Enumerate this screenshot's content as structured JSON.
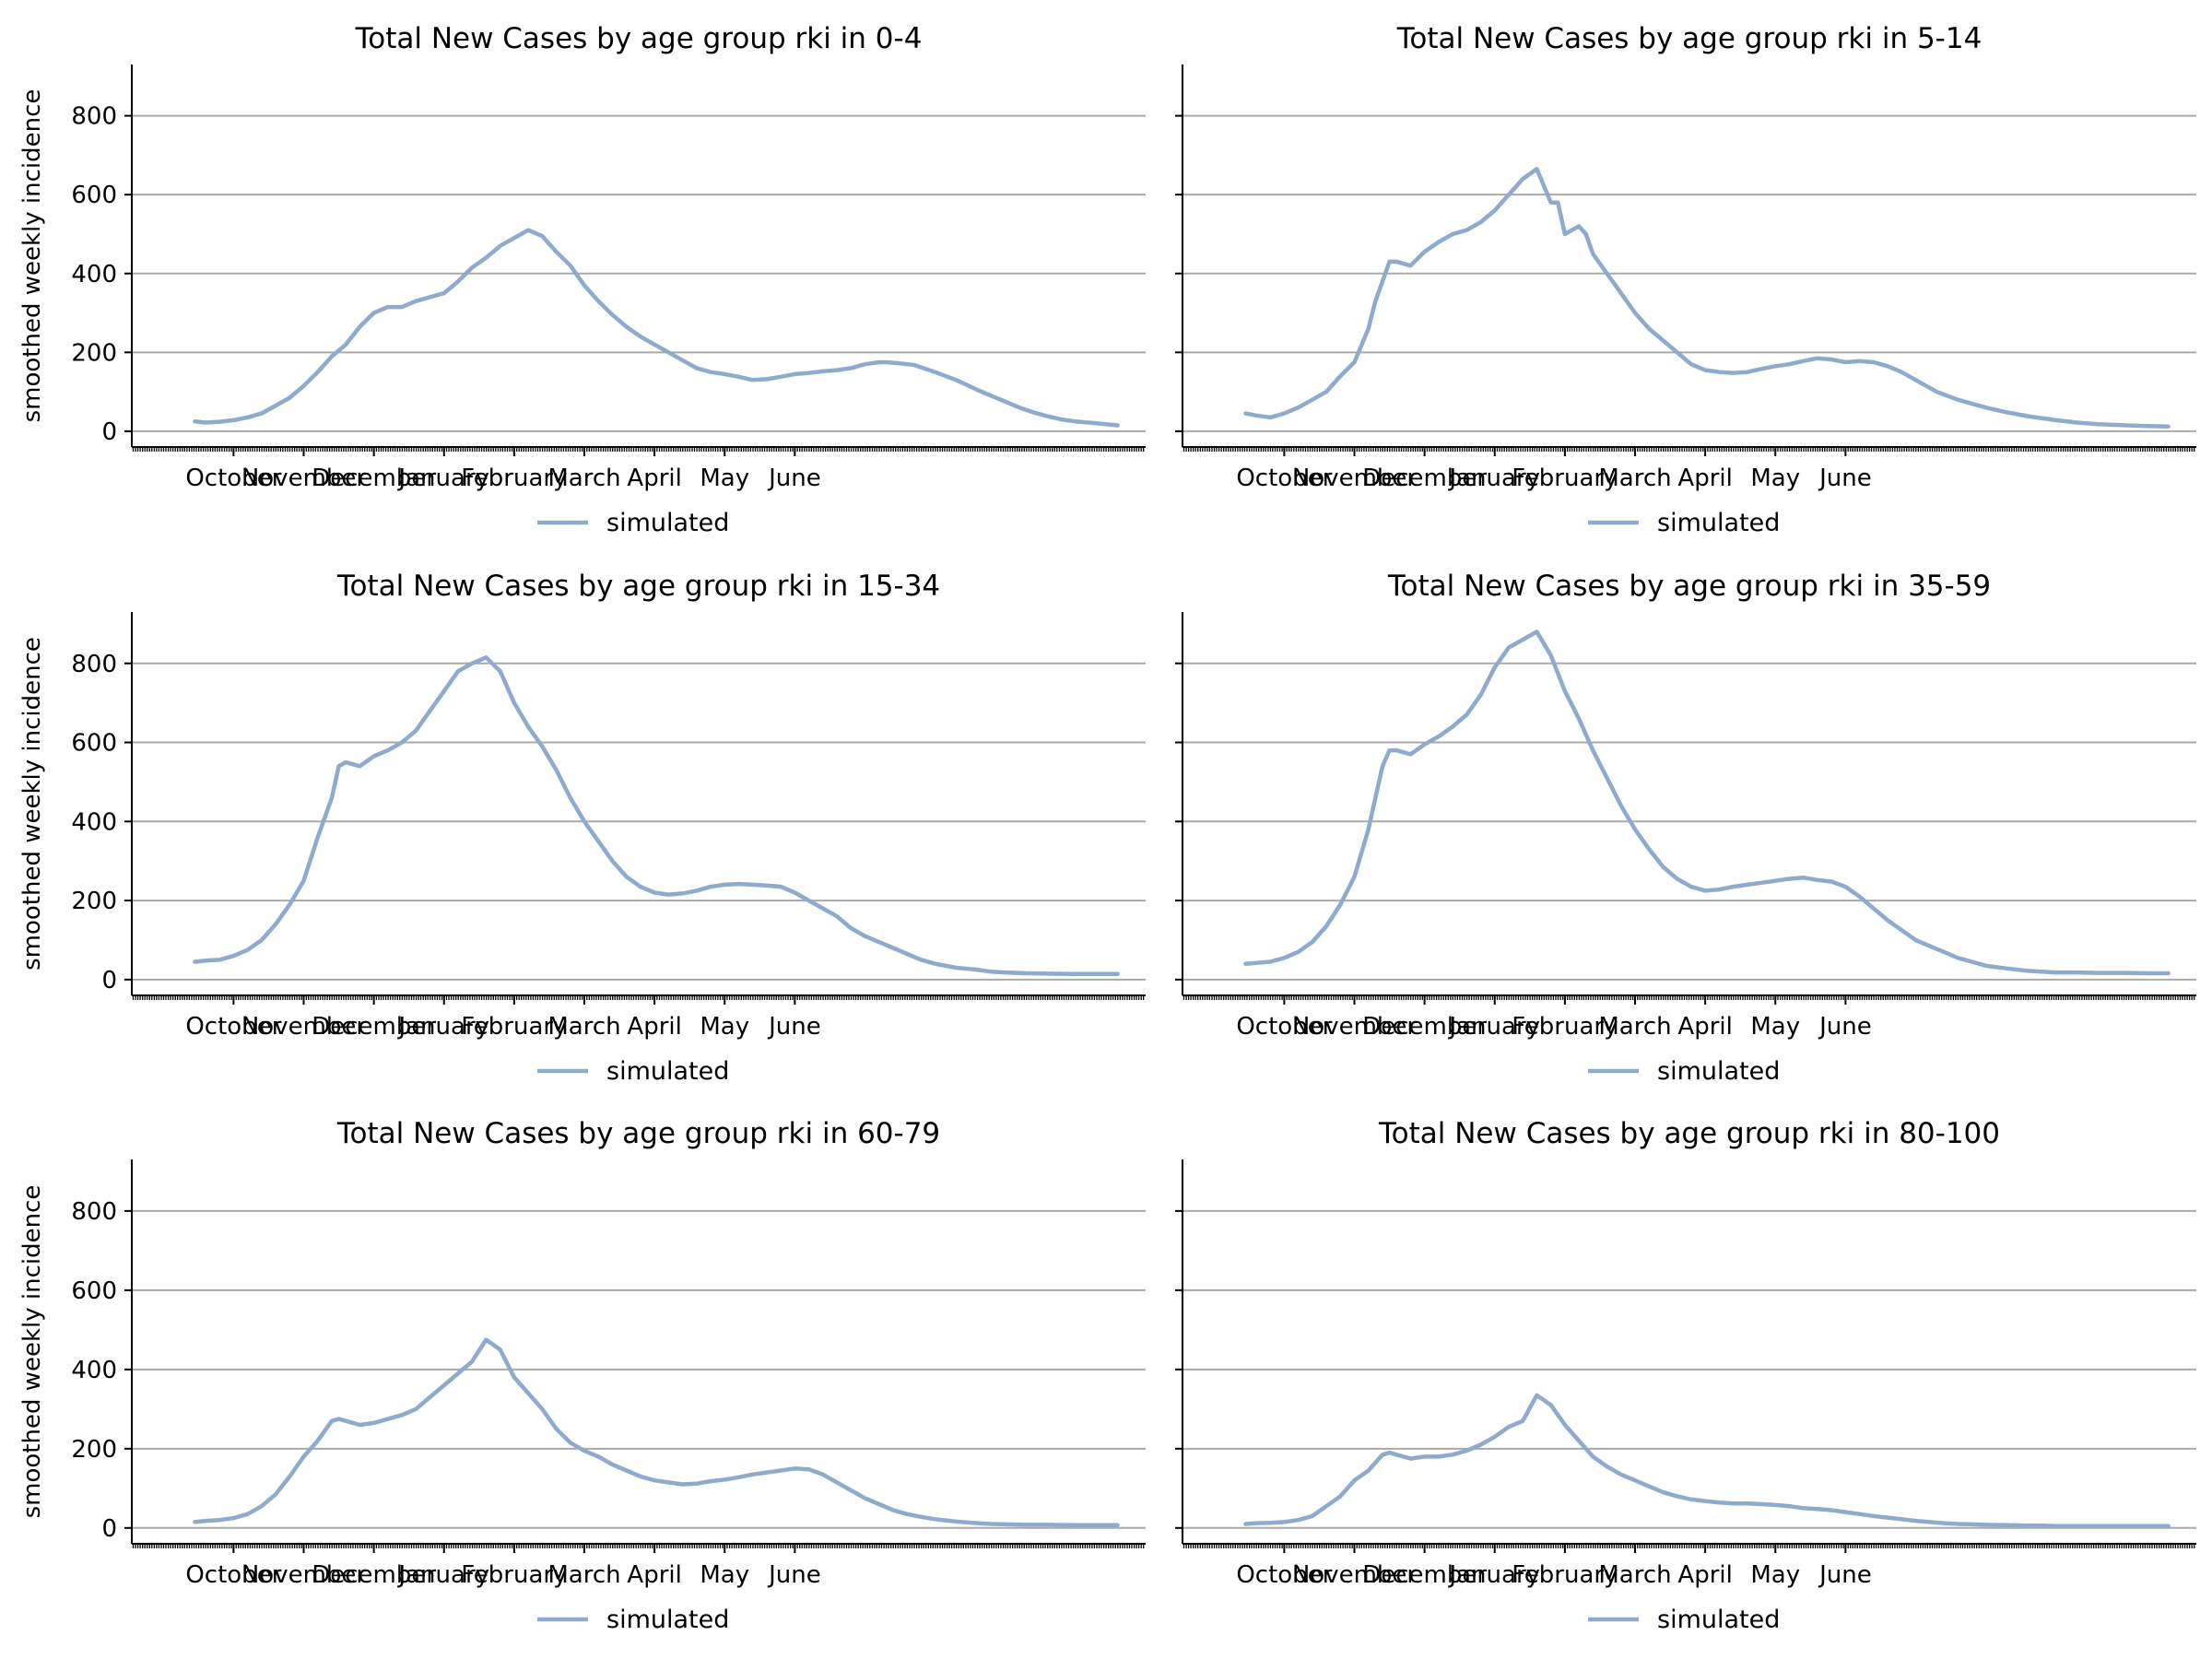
{
  "style": {
    "line_color": "#8eaacc",
    "grid_color": "#aaaaaa",
    "axis_color": "#000000"
  },
  "chart_data": [
    {
      "type": "line",
      "title": "Total New Cases by age group rki in 0-4",
      "ylabel": "smoothed weekly incidence",
      "xlabel": "",
      "ylim": [
        -40,
        930
      ],
      "yticks": [
        0,
        200,
        400,
        600,
        800
      ],
      "xticks": [
        "October",
        "November",
        "December",
        "January",
        "February",
        "March",
        "April",
        "May",
        "June"
      ],
      "grid": "horizontal",
      "legend": "bottom-center",
      "series": [
        {
          "name": "simulated",
          "x": [
            -0.55,
            -0.4,
            -0.2,
            0.0,
            0.2,
            0.4,
            0.6,
            0.8,
            1.0,
            1.2,
            1.4,
            1.6,
            1.8,
            2.0,
            2.2,
            2.4,
            2.6,
            2.8,
            3.0,
            3.2,
            3.4,
            3.6,
            3.8,
            4.0,
            4.2,
            4.4,
            4.6,
            4.8,
            5.0,
            5.2,
            5.4,
            5.6,
            5.8,
            6.0,
            6.2,
            6.4,
            6.6,
            6.8,
            7.0,
            7.2,
            7.4,
            7.6,
            7.8,
            8.0,
            8.2,
            8.4,
            8.6,
            8.8,
            9.0,
            9.2,
            9.3,
            9.5,
            9.7,
            10.0,
            10.3,
            10.6,
            10.8,
            11.0,
            11.2,
            11.4,
            11.6,
            11.8,
            12.0,
            12.3,
            12.6
          ],
          "y": [
            25,
            22,
            24,
            28,
            35,
            45,
            65,
            85,
            115,
            150,
            190,
            220,
            265,
            300,
            315,
            315,
            330,
            340,
            350,
            380,
            415,
            440,
            470,
            490,
            510,
            495,
            455,
            420,
            370,
            330,
            295,
            265,
            240,
            220,
            200,
            180,
            160,
            150,
            145,
            138,
            130,
            132,
            138,
            145,
            148,
            152,
            155,
            160,
            170,
            175,
            175,
            172,
            168,
            150,
            130,
            105,
            90,
            75,
            60,
            48,
            38,
            30,
            25,
            20,
            15
          ]
        }
      ]
    },
    {
      "type": "line",
      "title": "Total New Cases by age group rki in 5-14",
      "ylabel": "",
      "xlabel": "",
      "ylim": [
        -40,
        930
      ],
      "yticks": [
        0,
        200,
        400,
        600,
        800
      ],
      "xticks": [
        "October",
        "November",
        "December",
        "January",
        "February",
        "March",
        "April",
        "May",
        "June"
      ],
      "grid": "horizontal",
      "legend": "bottom-center",
      "series": [
        {
          "name": "simulated",
          "x": [
            -0.55,
            -0.4,
            -0.2,
            0.0,
            0.2,
            0.4,
            0.6,
            0.8,
            1.0,
            1.2,
            1.3,
            1.5,
            1.6,
            1.8,
            2.0,
            2.2,
            2.4,
            2.6,
            2.8,
            3.0,
            3.2,
            3.4,
            3.6,
            3.8,
            3.9,
            4.0,
            4.1,
            4.2,
            4.3,
            4.4,
            4.6,
            4.8,
            5.0,
            5.2,
            5.4,
            5.6,
            5.8,
            6.0,
            6.2,
            6.4,
            6.6,
            6.8,
            7.0,
            7.2,
            7.4,
            7.6,
            7.8,
            8.0,
            8.2,
            8.4,
            8.6,
            8.8,
            9.0,
            9.3,
            9.6,
            10.0,
            10.3,
            10.6,
            11.0,
            11.3,
            11.6,
            12.0,
            12.3,
            12.6
          ],
          "y": [
            45,
            40,
            35,
            45,
            60,
            80,
            100,
            140,
            175,
            260,
            330,
            430,
            430,
            420,
            455,
            480,
            500,
            510,
            530,
            560,
            600,
            640,
            665,
            580,
            580,
            500,
            510,
            520,
            500,
            450,
            400,
            350,
            300,
            260,
            230,
            200,
            170,
            155,
            150,
            148,
            150,
            158,
            165,
            170,
            178,
            185,
            182,
            175,
            178,
            175,
            165,
            150,
            130,
            100,
            80,
            60,
            48,
            38,
            28,
            22,
            18,
            15,
            13,
            12
          ]
        }
      ]
    },
    {
      "type": "line",
      "title": "Total New Cases by age group rki in 15-34",
      "ylabel": "smoothed weekly incidence",
      "xlabel": "",
      "ylim": [
        -40,
        930
      ],
      "yticks": [
        0,
        200,
        400,
        600,
        800
      ],
      "xticks": [
        "October",
        "November",
        "December",
        "January",
        "February",
        "March",
        "April",
        "May",
        "June"
      ],
      "grid": "horizontal",
      "legend": "bottom-center",
      "series": [
        {
          "name": "simulated",
          "x": [
            -0.55,
            -0.4,
            -0.2,
            0.0,
            0.2,
            0.4,
            0.6,
            0.8,
            1.0,
            1.2,
            1.4,
            1.5,
            1.6,
            1.8,
            2.0,
            2.2,
            2.4,
            2.6,
            2.8,
            3.0,
            3.2,
            3.4,
            3.6,
            3.8,
            4.0,
            4.2,
            4.4,
            4.6,
            4.8,
            5.0,
            5.2,
            5.4,
            5.6,
            5.8,
            6.0,
            6.2,
            6.4,
            6.6,
            6.8,
            7.0,
            7.2,
            7.4,
            7.6,
            7.8,
            8.0,
            8.2,
            8.4,
            8.6,
            8.8,
            9.0,
            9.2,
            9.4,
            9.6,
            9.8,
            10.0,
            10.3,
            10.6,
            10.8,
            11.0,
            11.3,
            11.6,
            12.0,
            12.3,
            12.6
          ],
          "y": [
            45,
            48,
            50,
            60,
            75,
            100,
            140,
            190,
            250,
            360,
            460,
            540,
            550,
            540,
            565,
            580,
            600,
            630,
            680,
            730,
            780,
            800,
            815,
            780,
            700,
            640,
            590,
            530,
            460,
            400,
            350,
            300,
            260,
            235,
            220,
            215,
            218,
            225,
            235,
            240,
            242,
            240,
            238,
            235,
            220,
            200,
            180,
            160,
            130,
            110,
            95,
            80,
            65,
            50,
            40,
            30,
            25,
            20,
            18,
            16,
            15,
            14,
            14,
            14
          ]
        }
      ]
    },
    {
      "type": "line",
      "title": "Total New Cases by age group rki in 35-59",
      "ylabel": "",
      "xlabel": "",
      "ylim": [
        -40,
        930
      ],
      "yticks": [
        0,
        200,
        400,
        600,
        800
      ],
      "xticks": [
        "October",
        "November",
        "December",
        "January",
        "February",
        "March",
        "April",
        "May",
        "June"
      ],
      "grid": "horizontal",
      "legend": "bottom-center",
      "series": [
        {
          "name": "simulated",
          "x": [
            -0.55,
            -0.4,
            -0.2,
            0.0,
            0.2,
            0.4,
            0.6,
            0.8,
            1.0,
            1.2,
            1.4,
            1.5,
            1.6,
            1.8,
            2.0,
            2.2,
            2.4,
            2.6,
            2.8,
            3.0,
            3.2,
            3.4,
            3.6,
            3.8,
            4.0,
            4.2,
            4.4,
            4.6,
            4.8,
            5.0,
            5.2,
            5.4,
            5.6,
            5.8,
            6.0,
            6.2,
            6.4,
            6.6,
            6.8,
            7.0,
            7.2,
            7.4,
            7.6,
            7.8,
            8.0,
            8.2,
            8.4,
            8.6,
            8.8,
            9.0,
            9.2,
            9.4,
            9.6,
            9.8,
            10.0,
            10.3,
            10.6,
            10.8,
            11.0,
            11.3,
            11.6,
            12.0,
            12.3,
            12.6
          ],
          "y": [
            40,
            42,
            45,
            55,
            70,
            95,
            135,
            190,
            260,
            380,
            540,
            580,
            580,
            570,
            595,
            615,
            640,
            670,
            720,
            790,
            840,
            860,
            880,
            820,
            730,
            660,
            580,
            510,
            440,
            380,
            330,
            285,
            255,
            235,
            225,
            228,
            235,
            240,
            245,
            250,
            255,
            258,
            252,
            248,
            235,
            210,
            180,
            150,
            125,
            100,
            85,
            70,
            55,
            45,
            35,
            28,
            22,
            20,
            18,
            18,
            17,
            17,
            16,
            16
          ]
        }
      ]
    },
    {
      "type": "line",
      "title": "Total New Cases by age group rki in 60-79",
      "ylabel": "smoothed weekly incidence",
      "xlabel": "",
      "ylim": [
        -40,
        930
      ],
      "yticks": [
        0,
        200,
        400,
        600,
        800
      ],
      "xticks": [
        "October",
        "November",
        "December",
        "January",
        "February",
        "March",
        "April",
        "May",
        "June"
      ],
      "grid": "horizontal",
      "legend": "bottom-center",
      "series": [
        {
          "name": "simulated",
          "x": [
            -0.55,
            -0.4,
            -0.2,
            0.0,
            0.2,
            0.4,
            0.6,
            0.8,
            1.0,
            1.2,
            1.4,
            1.5,
            1.6,
            1.8,
            2.0,
            2.2,
            2.4,
            2.6,
            2.8,
            3.0,
            3.2,
            3.4,
            3.6,
            3.8,
            4.0,
            4.2,
            4.4,
            4.6,
            4.8,
            5.0,
            5.2,
            5.4,
            5.6,
            5.8,
            6.0,
            6.2,
            6.4,
            6.6,
            6.8,
            7.0,
            7.2,
            7.4,
            7.6,
            7.8,
            8.0,
            8.2,
            8.4,
            8.6,
            8.8,
            9.0,
            9.2,
            9.4,
            9.6,
            9.8,
            10.0,
            10.3,
            10.6,
            10.8,
            11.0,
            11.3,
            11.6,
            12.0,
            12.3,
            12.6
          ],
          "y": [
            15,
            18,
            20,
            25,
            35,
            55,
            85,
            130,
            180,
            220,
            270,
            275,
            270,
            260,
            265,
            275,
            285,
            300,
            330,
            360,
            390,
            420,
            475,
            450,
            380,
            340,
            300,
            250,
            215,
            195,
            180,
            160,
            145,
            130,
            120,
            115,
            110,
            112,
            118,
            122,
            128,
            135,
            140,
            145,
            150,
            148,
            135,
            115,
            95,
            75,
            60,
            45,
            35,
            28,
            22,
            16,
            12,
            10,
            9,
            8,
            8,
            7,
            7,
            7
          ]
        }
      ]
    },
    {
      "type": "line",
      "title": "Total New Cases by age group rki in 80-100",
      "ylabel": "",
      "xlabel": "",
      "ylim": [
        -40,
        930
      ],
      "yticks": [
        0,
        200,
        400,
        600,
        800
      ],
      "xticks": [
        "October",
        "November",
        "December",
        "January",
        "February",
        "March",
        "April",
        "May",
        "June"
      ],
      "grid": "horizontal",
      "legend": "bottom-center",
      "series": [
        {
          "name": "simulated",
          "x": [
            -0.55,
            -0.4,
            -0.2,
            0.0,
            0.2,
            0.4,
            0.6,
            0.8,
            1.0,
            1.2,
            1.4,
            1.5,
            1.6,
            1.8,
            2.0,
            2.2,
            2.4,
            2.6,
            2.8,
            3.0,
            3.2,
            3.4,
            3.6,
            3.8,
            4.0,
            4.2,
            4.4,
            4.6,
            4.8,
            5.0,
            5.2,
            5.4,
            5.6,
            5.8,
            6.0,
            6.2,
            6.4,
            6.6,
            6.8,
            7.0,
            7.2,
            7.4,
            7.6,
            7.8,
            8.0,
            8.2,
            8.4,
            8.6,
            8.8,
            9.0,
            9.2,
            9.4,
            9.6,
            9.8,
            10.0,
            10.3,
            10.6,
            10.8,
            11.0,
            11.3,
            11.6,
            12.0,
            12.3,
            12.6
          ],
          "y": [
            10,
            12,
            13,
            15,
            20,
            30,
            55,
            80,
            120,
            145,
            185,
            190,
            185,
            175,
            180,
            180,
            185,
            195,
            210,
            230,
            255,
            270,
            335,
            310,
            260,
            220,
            180,
            155,
            135,
            120,
            105,
            90,
            80,
            72,
            68,
            64,
            62,
            62,
            60,
            58,
            55,
            50,
            48,
            45,
            40,
            35,
            30,
            26,
            22,
            18,
            15,
            12,
            10,
            9,
            8,
            7,
            6,
            6,
            5,
            5,
            5,
            5,
            5,
            5
          ]
        }
      ]
    }
  ]
}
